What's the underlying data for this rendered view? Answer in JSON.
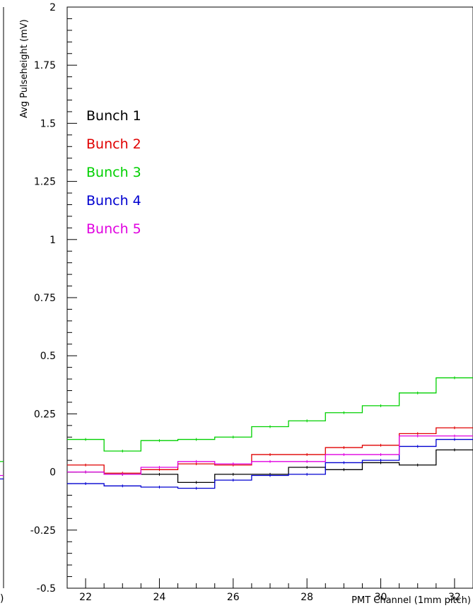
{
  "chart_data": {
    "type": "line",
    "style": "step",
    "title": "",
    "xlabel": "PMT Channel (1mm pitch)",
    "ylabel": "Avg Pulseheight (mV)",
    "xlim": [
      21.5,
      32.5
    ],
    "ylim": [
      -0.5,
      2.0
    ],
    "x_ticks": [
      "22",
      "24",
      "26",
      "28",
      "30",
      "32"
    ],
    "y_ticks": [
      "-0.5",
      "-0.25",
      "0",
      "0.25",
      "0.5",
      "0.75",
      "1",
      "1.25",
      "1.5",
      "1.75",
      "2"
    ],
    "grid": false,
    "legend_position": "top-left",
    "x": [
      22,
      23,
      24,
      25,
      26,
      27,
      28,
      29,
      30,
      31,
      32
    ],
    "series": [
      {
        "name": "Bunch 1",
        "color": "#000000",
        "values": [
          0.0,
          -0.01,
          -0.01,
          -0.045,
          -0.01,
          -0.01,
          0.02,
          0.01,
          0.04,
          0.03,
          0.095
        ]
      },
      {
        "name": "Bunch 2",
        "color": "#e00000",
        "values": [
          0.03,
          -0.005,
          0.01,
          0.035,
          0.03,
          0.075,
          0.075,
          0.105,
          0.115,
          0.165,
          0.19
        ]
      },
      {
        "name": "Bunch 3",
        "color": "#00d000",
        "values": [
          0.14,
          0.09,
          0.135,
          0.14,
          0.15,
          0.195,
          0.22,
          0.255,
          0.285,
          0.34,
          0.405
        ]
      },
      {
        "name": "Bunch 4",
        "color": "#0000d0",
        "values": [
          -0.05,
          -0.06,
          -0.065,
          -0.07,
          -0.035,
          -0.015,
          -0.01,
          0.04,
          0.05,
          0.11,
          0.14
        ]
      },
      {
        "name": "Bunch 5",
        "color": "#e000e0",
        "values": [
          0.0,
          -0.01,
          0.02,
          0.045,
          0.035,
          0.045,
          0.045,
          0.075,
          0.075,
          0.155,
          0.155
        ]
      }
    ]
  },
  "left_panel": {
    "cut_label": ")",
    "green_level": 0.045,
    "magenta_level": -0.015,
    "blue_level": -0.03
  }
}
